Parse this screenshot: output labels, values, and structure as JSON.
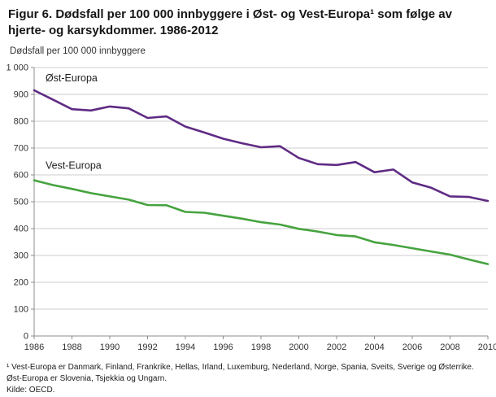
{
  "title": "Figur 6. Dødsfall per 100 000 innbyggere i Øst- og Vest-Europa¹ som følge av hjerte- og karsykdommer. 1986-2012",
  "y_axis_title": "Dødsfall per 100 000 innbyggere",
  "footnote": "¹ Vest-Europa er Danmark, Finland, Frankrike, Hellas, Irland, Luxemburg, Nederland, Norge, Spania, Sveits, Sverige og Østerrike. Øst-Europa er Slovenia, Tsjekkia og Ungarn.",
  "source": "Kilde: OECD.",
  "colors": {
    "ost_europa": "#5f2b84",
    "vest_europa": "#46a33f",
    "grid": "#cccccc",
    "axis": "#8c8c8c",
    "tick_text": "#333333",
    "series_label_text": "#222222"
  },
  "chart_data": {
    "type": "line",
    "title": "Figur 6. Dødsfall per 100 000 innbyggere i Øst- og Vest-Europa som følge av hjerte- og karsykdommer. 1986-2012",
    "ylabel": "Dødsfall per 100 000 innbyggere",
    "xlabel": "",
    "grid": "horizontal",
    "legend_position": "inline-labels",
    "ylim": [
      0,
      1000
    ],
    "ytick_step": 100,
    "ytick_labels": [
      "0",
      "100",
      "200",
      "300",
      "400",
      "500",
      "600",
      "700",
      "800",
      "900",
      "1 000"
    ],
    "xlim": [
      1986,
      2010
    ],
    "xticks": [
      1986,
      1988,
      1990,
      1992,
      1994,
      1996,
      1998,
      2000,
      2002,
      2004,
      2006,
      2008,
      2010
    ],
    "x": [
      1986,
      1987,
      1988,
      1989,
      1990,
      1991,
      1992,
      1993,
      1994,
      1995,
      1996,
      1997,
      1998,
      1999,
      2000,
      2001,
      2002,
      2003,
      2004,
      2005,
      2006,
      2007,
      2008,
      2009,
      2010
    ],
    "series": [
      {
        "name": "Øst-Europa",
        "color": "#5f2b84",
        "values": [
          915,
          880,
          845,
          840,
          855,
          848,
          812,
          818,
          780,
          758,
          735,
          718,
          703,
          707,
          663,
          640,
          637,
          648,
          610,
          620,
          572,
          552,
          520,
          518,
          503
        ],
        "label_at": {
          "x": 1986.6,
          "y": 948
        }
      },
      {
        "name": "Vest-Europa",
        "color": "#46a33f",
        "values": [
          580,
          562,
          548,
          532,
          520,
          508,
          488,
          487,
          462,
          459,
          448,
          437,
          424,
          415,
          399,
          389,
          376,
          371,
          349,
          339,
          327,
          315,
          303,
          285,
          268
        ],
        "label_at": {
          "x": 1986.6,
          "y": 622
        }
      }
    ]
  }
}
